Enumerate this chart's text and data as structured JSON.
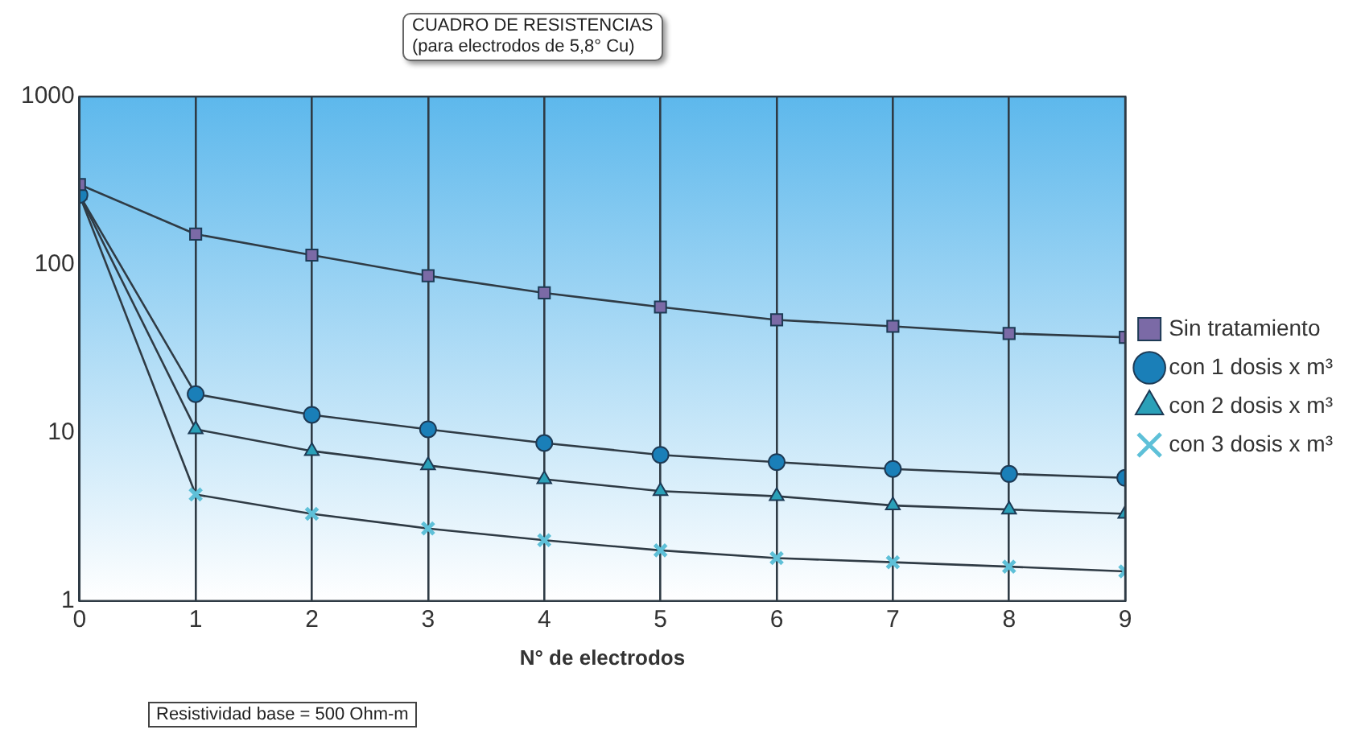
{
  "chart_data": {
    "type": "line",
    "title": "CUADRO DE RESISTENCIAS",
    "subtitle": "(para electrodos de 5,8° Cu)",
    "xlabel": "N° de electrodos",
    "x": [
      0,
      1,
      2,
      3,
      4,
      5,
      6,
      7,
      8,
      9
    ],
    "series": [
      {
        "name": "Sin tratamiento",
        "color": "#7b6aa6",
        "marker": "square",
        "values": [
          300,
          152,
          114,
          86,
          68,
          56,
          47,
          43,
          39,
          37
        ]
      },
      {
        "name": "con 1 dosis x m³",
        "color": "#1a7fb8",
        "marker": "circle",
        "values": [
          260,
          17,
          12.8,
          10.5,
          8.7,
          7.4,
          6.7,
          6.1,
          5.7,
          5.4
        ]
      },
      {
        "name": "con 2 dosis x m³",
        "color": "#2aa0b8",
        "marker": "triangle",
        "values": [
          260,
          10.5,
          7.8,
          6.4,
          5.3,
          4.5,
          4.2,
          3.7,
          3.5,
          3.3
        ]
      },
      {
        "name": "con 3 dosis x m³",
        "color": "#5ec0d8",
        "marker": "cross",
        "values": [
          260,
          4.3,
          3.3,
          2.7,
          2.3,
          2.0,
          1.8,
          1.7,
          1.6,
          1.5
        ]
      }
    ],
    "log": "y",
    "xlim": [
      0,
      9
    ],
    "xticks": [
      0,
      1,
      2,
      3,
      4,
      5,
      6,
      7,
      8,
      9
    ],
    "ylim": [
      1,
      1000
    ],
    "yticks": [
      1,
      10,
      100,
      1000
    ],
    "grid": "x",
    "legend": "right",
    "annotations": [
      "Resistividad base = 500 Ohm-m"
    ]
  }
}
